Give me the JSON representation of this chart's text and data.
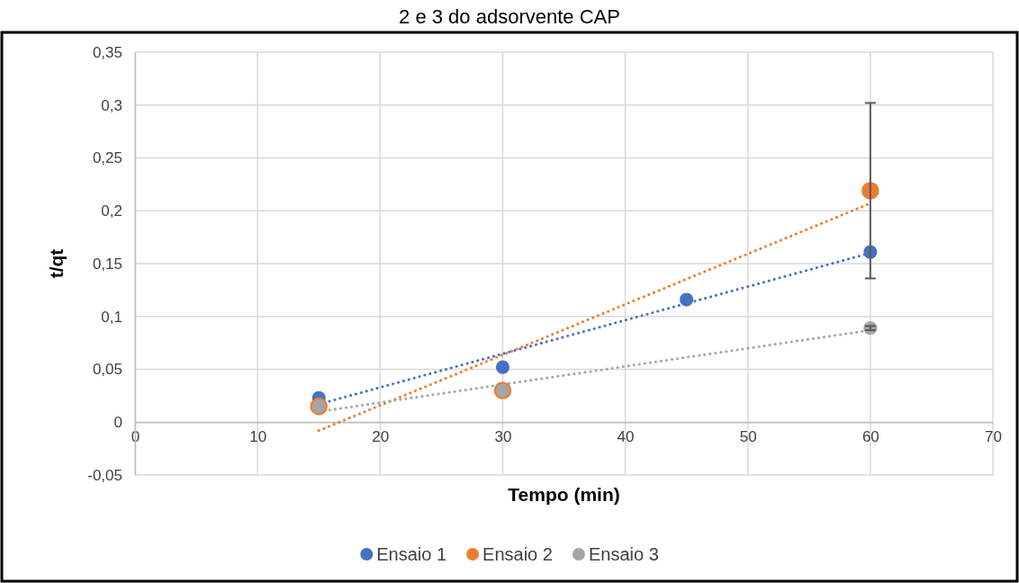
{
  "chart_data": {
    "type": "scatter",
    "title": "2 e 3 do adsorvente CAP",
    "xlabel": "Tempo (min)",
    "ylabel": "t/qt",
    "xlim": [
      0,
      70
    ],
    "xticks": [
      0,
      10,
      20,
      30,
      40,
      50,
      60,
      70
    ],
    "ylim": [
      -0.05,
      0.35
    ],
    "yticks": [
      {
        "value": -0.05,
        "label": "-0,05"
      },
      0,
      {
        "value": 0.05,
        "label": "0,05"
      },
      {
        "value": 0.1,
        "label": "0,1"
      },
      {
        "value": 0.15,
        "label": "0,15"
      },
      {
        "value": 0.2,
        "label": "0,2"
      },
      {
        "value": 0.25,
        "label": "0,25"
      },
      {
        "value": 0.3,
        "label": "0,3"
      },
      {
        "value": 0.35,
        "label": "0,35"
      }
    ],
    "grid": true,
    "legend": "bottom",
    "marker": "circle",
    "series": [
      {
        "name": "Ensaio 1",
        "color": "#4472c4",
        "x": [
          15,
          30,
          45,
          60
        ],
        "values": [
          0.023,
          0.052,
          0.116,
          0.161
        ]
      },
      {
        "name": "Ensaio 2",
        "color": "#ed7d31",
        "x": [
          15,
          30,
          60
        ],
        "values": [
          0.015,
          0.03,
          0.219
        ],
        "errors": [
          null,
          null,
          0.083
        ]
      },
      {
        "name": "Ensaio 3",
        "color": "#a5a5a5",
        "x": [
          15,
          30,
          60
        ],
        "values": [
          0.015,
          0.03,
          0.089
        ],
        "errors": [
          null,
          null,
          0.002
        ]
      },
      {
        "type": "line",
        "line_style": "dotted",
        "marker": "none",
        "color": "#4472c4",
        "x": [
          15,
          60
        ],
        "values": [
          0.017,
          0.16
        ]
      },
      {
        "type": "line",
        "line_style": "dotted",
        "marker": "none",
        "color": "#ed7d31",
        "x": [
          15,
          60
        ],
        "values": [
          -0.008,
          0.207
        ]
      },
      {
        "type": "line",
        "line_style": "dotted",
        "marker": "none",
        "color": "#a5a5a5",
        "x": [
          15,
          60
        ],
        "values": [
          0.01,
          0.087
        ]
      }
    ]
  }
}
